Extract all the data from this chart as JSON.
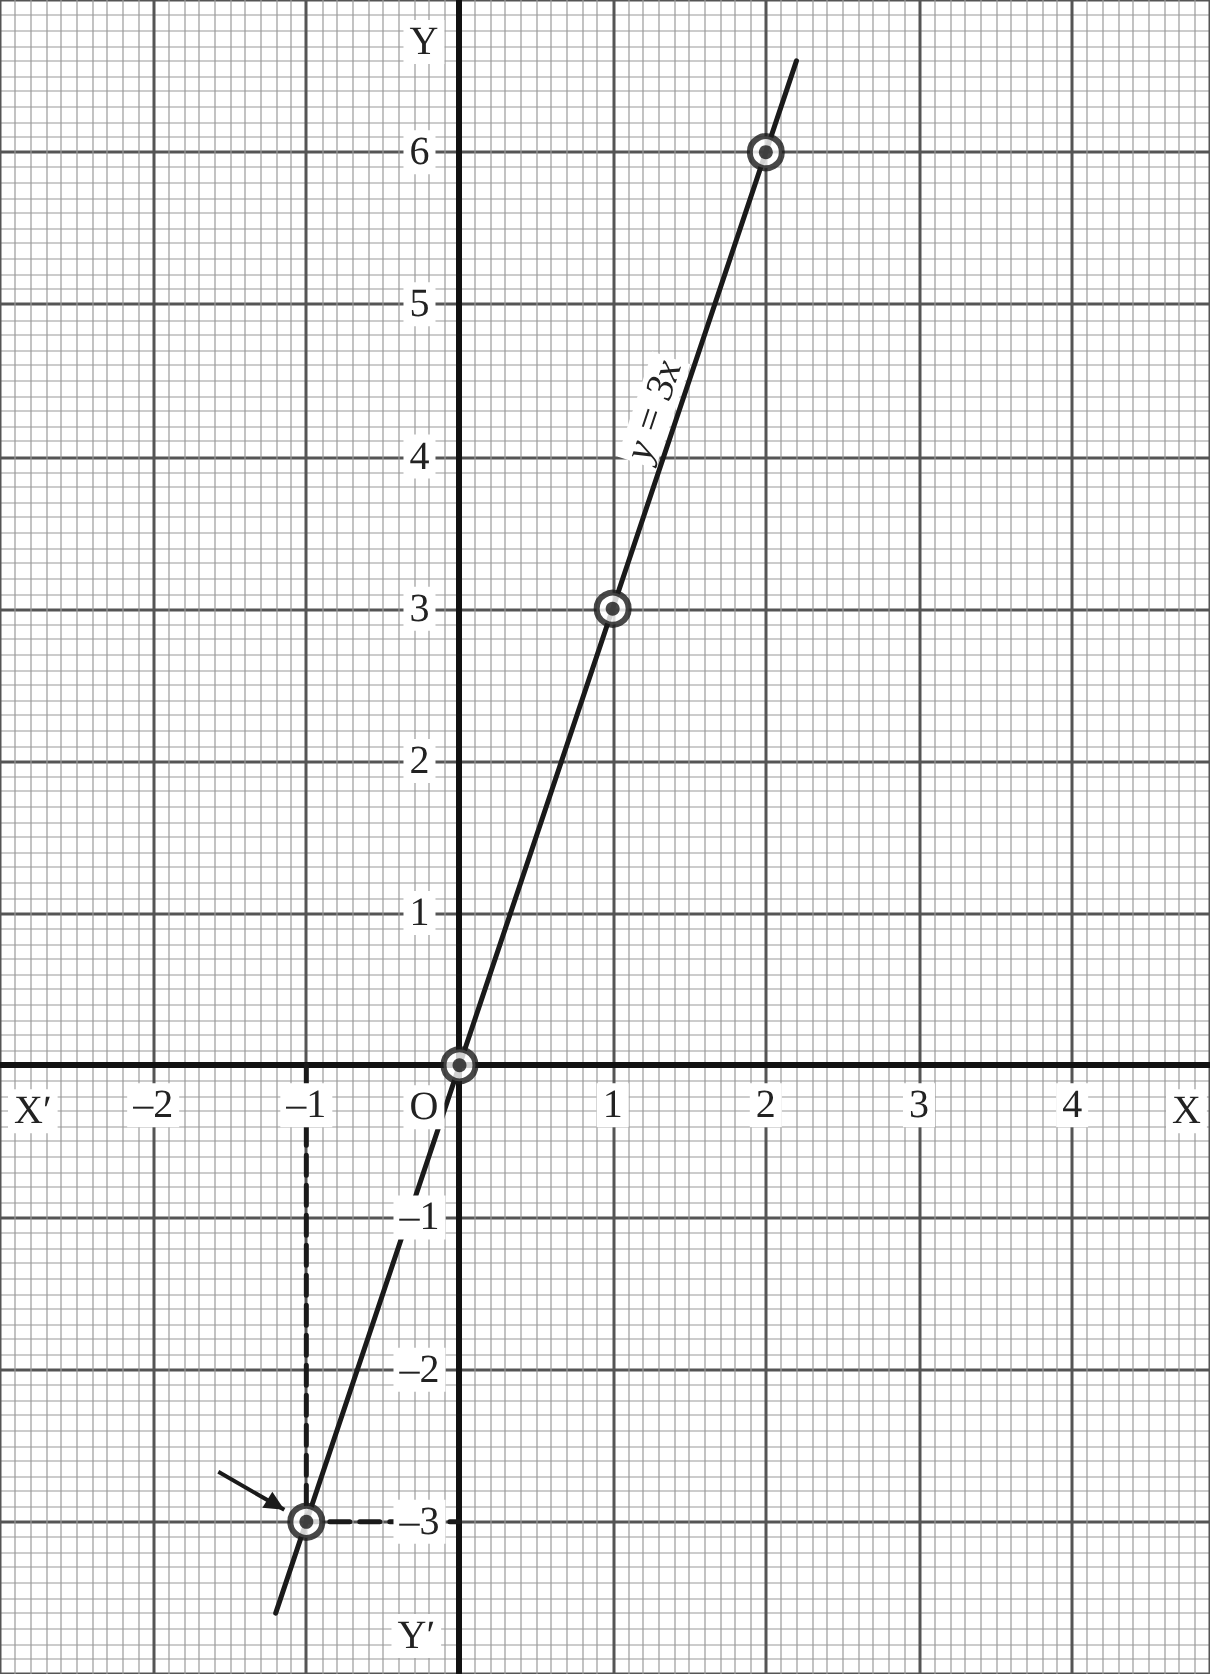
{
  "chart_data": {
    "type": "line",
    "xlabel": "X",
    "ylabel": "Y",
    "xlim": [
      -3,
      4.9
    ],
    "ylim": [
      -4,
      7
    ],
    "xticks": [
      {
        "value": -2,
        "label": "–2"
      },
      {
        "value": -1,
        "label": "–1"
      },
      1,
      2,
      3,
      4
    ],
    "yticks": [
      {
        "value": -3,
        "label": "–3"
      },
      {
        "value": -2,
        "label": "–2"
      },
      {
        "value": -1,
        "label": "–1"
      },
      1,
      2,
      3,
      4,
      5,
      6
    ],
    "grid": true,
    "annotations": [
      "y = 3x",
      {
        "text": "O",
        "x": 0,
        "y": 0
      },
      "X′",
      "Y′"
    ],
    "series": [
      {
        "type": "line",
        "x": [
          -1.2,
          2.2
        ],
        "values": [
          -3.6,
          6.6
        ],
        "color": "#1a1a1a",
        "marker": "none"
      },
      {
        "type": "scatter",
        "x": [
          -1,
          0,
          1,
          2
        ],
        "values": [
          -3,
          0,
          3,
          6
        ],
        "color": "#1a1a1a",
        "marker": "circle"
      },
      {
        "type": "line",
        "x": [
          -1,
          -1,
          0
        ],
        "values": [
          0,
          -3,
          -3
        ],
        "color": "#1a1a1a",
        "line_style": "dashed",
        "marker": "none"
      }
    ]
  }
}
